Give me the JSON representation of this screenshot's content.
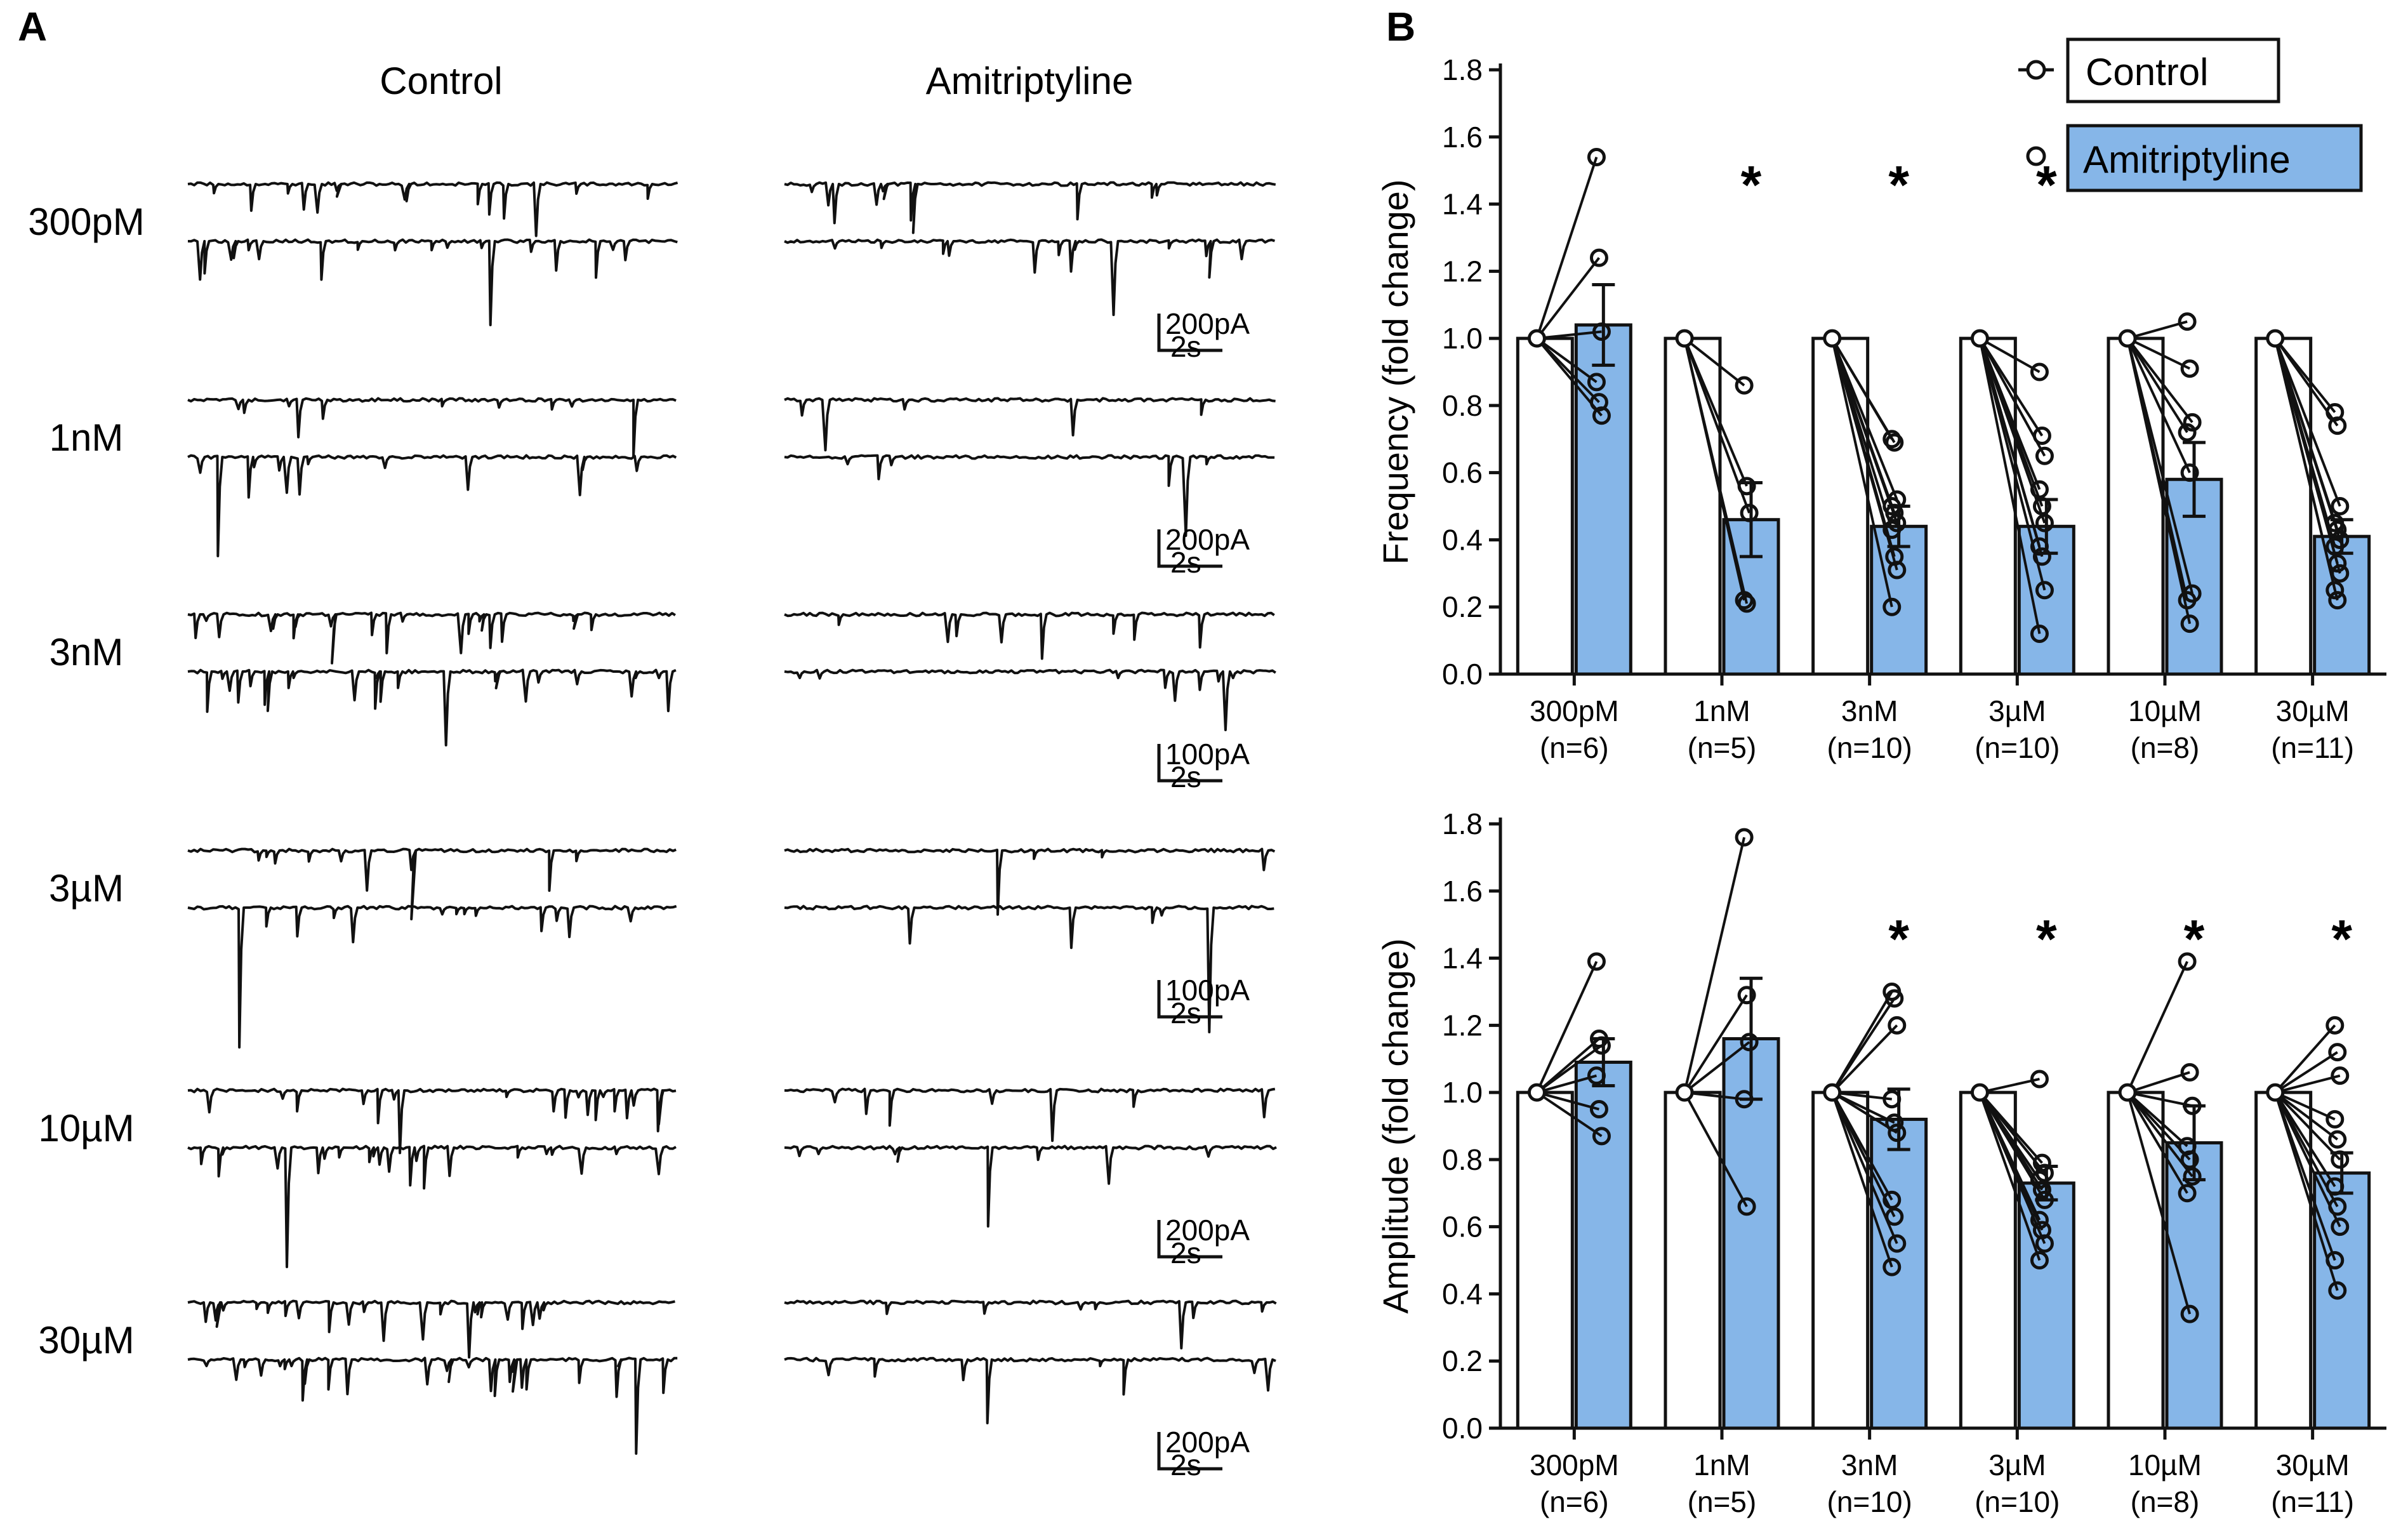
{
  "colors": {
    "amitriptyline": "#86b6e8",
    "control": "#ffffff",
    "ink": "#111111"
  },
  "panel_a": {
    "letter": "A",
    "col_control": "Control",
    "col_amitriptyline": "Amitriptyline",
    "rows": [
      {
        "conc": "300pM",
        "scale_current": "200pA",
        "scale_time": "2s",
        "ctrl_events": 28,
        "ami_events": 22,
        "big_ctrl": 0.45,
        "big_ami": 0.35
      },
      {
        "conc": "1nM",
        "scale_current": "200pA",
        "scale_time": "2s",
        "ctrl_events": 18,
        "ami_events": 8,
        "big_ctrl": 0.6,
        "big_ami": 0.4
      },
      {
        "conc": "3nM",
        "scale_current": "100pA",
        "scale_time": "2s",
        "ctrl_events": 40,
        "ami_events": 14,
        "big_ctrl": 0.35,
        "big_ami": 0.2
      },
      {
        "conc": "3µM",
        "scale_current": "100pA",
        "scale_time": "2s",
        "ctrl_events": 18,
        "ami_events": 6,
        "big_ctrl": 1.0,
        "big_ami": 0.85
      },
      {
        "conc": "10µM",
        "scale_current": "200pA",
        "scale_time": "2s",
        "ctrl_events": 36,
        "ami_events": 12,
        "big_ctrl": 0.8,
        "big_ami": 0.4
      },
      {
        "conc": "30µM",
        "scale_current": "200pA",
        "scale_time": "2s",
        "ctrl_events": 45,
        "ami_events": 12,
        "big_ctrl": 0.55,
        "big_ami": 0.25
      }
    ]
  },
  "panel_b": {
    "letter": "B",
    "legend_control": "Control",
    "legend_amitriptyline": "Amitriptyline"
  },
  "chart_data": [
    {
      "type": "bar",
      "ylabel": "Frequency (fold change)",
      "ylim": [
        0,
        1.8
      ],
      "yticks": [
        "0.0",
        "0.2",
        "0.4",
        "0.6",
        "0.8",
        "1.0",
        "1.2",
        "1.4",
        "1.6",
        "1.8"
      ],
      "categories": [
        "300pM",
        "1nM",
        "3nM",
        "3µM",
        "10µM",
        "30µM"
      ],
      "n_labels": [
        "(n=6)",
        "(n=5)",
        "(n=10)",
        "(n=10)",
        "(n=8)",
        "(n=11)"
      ],
      "series": [
        {
          "name": "Control",
          "values": [
            1.0,
            1.0,
            1.0,
            1.0,
            1.0,
            1.0
          ]
        },
        {
          "name": "Amitriptyline",
          "values": [
            1.04,
            0.46,
            0.44,
            0.44,
            0.58,
            0.41
          ],
          "sem": [
            0.12,
            0.11,
            0.06,
            0.08,
            0.11,
            0.05
          ]
        }
      ],
      "significant": [
        false,
        true,
        true,
        true,
        true,
        true
      ],
      "individual_points": [
        [
          1.54,
          1.24,
          1.02,
          0.87,
          0.81,
          0.77
        ],
        [
          0.86,
          0.56,
          0.48,
          0.22,
          0.21
        ],
        [
          0.7,
          0.69,
          0.52,
          0.5,
          0.48,
          0.45,
          0.43,
          0.35,
          0.31,
          0.2
        ],
        [
          0.9,
          0.71,
          0.65,
          0.55,
          0.5,
          0.45,
          0.38,
          0.35,
          0.25,
          0.12
        ],
        [
          1.05,
          0.91,
          0.75,
          0.72,
          0.6,
          0.24,
          0.22,
          0.15
        ],
        [
          0.78,
          0.74,
          0.5,
          0.45,
          0.43,
          0.4,
          0.38,
          0.33,
          0.3,
          0.25,
          0.22
        ]
      ]
    },
    {
      "type": "bar",
      "ylabel": "Amplitude (fold change)",
      "ylim": [
        0,
        1.8
      ],
      "yticks": [
        "0.0",
        "0.2",
        "0.4",
        "0.6",
        "0.8",
        "1.0",
        "1.2",
        "1.4",
        "1.6",
        "1.8"
      ],
      "categories": [
        "300pM",
        "1nM",
        "3nM",
        "3µM",
        "10µM",
        "30µM"
      ],
      "n_labels": [
        "(n=6)",
        "(n=5)",
        "(n=10)",
        "(n=10)",
        "(n=8)",
        "(n=11)"
      ],
      "series": [
        {
          "name": "Control",
          "values": [
            1.0,
            1.0,
            1.0,
            1.0,
            1.0,
            1.0
          ]
        },
        {
          "name": "Amitriptyline",
          "values": [
            1.09,
            1.16,
            0.92,
            0.73,
            0.85,
            0.76
          ],
          "sem": [
            0.07,
            0.18,
            0.09,
            0.05,
            0.11,
            0.06
          ]
        }
      ],
      "significant": [
        false,
        false,
        true,
        true,
        true,
        true
      ],
      "individual_points": [
        [
          1.39,
          1.16,
          1.14,
          1.05,
          0.95,
          0.87
        ],
        [
          1.76,
          1.29,
          1.15,
          0.98,
          0.66
        ],
        [
          1.3,
          1.28,
          1.2,
          0.98,
          0.91,
          0.88,
          0.68,
          0.63,
          0.55,
          0.48
        ],
        [
          1.04,
          0.79,
          0.76,
          0.74,
          0.71,
          0.68,
          0.62,
          0.59,
          0.55,
          0.5
        ],
        [
          1.39,
          1.06,
          0.96,
          0.84,
          0.8,
          0.75,
          0.7,
          0.34
        ],
        [
          1.2,
          1.12,
          1.05,
          0.92,
          0.86,
          0.8,
          0.72,
          0.66,
          0.6,
          0.5,
          0.41
        ]
      ]
    }
  ],
  "significance_marker": "*"
}
